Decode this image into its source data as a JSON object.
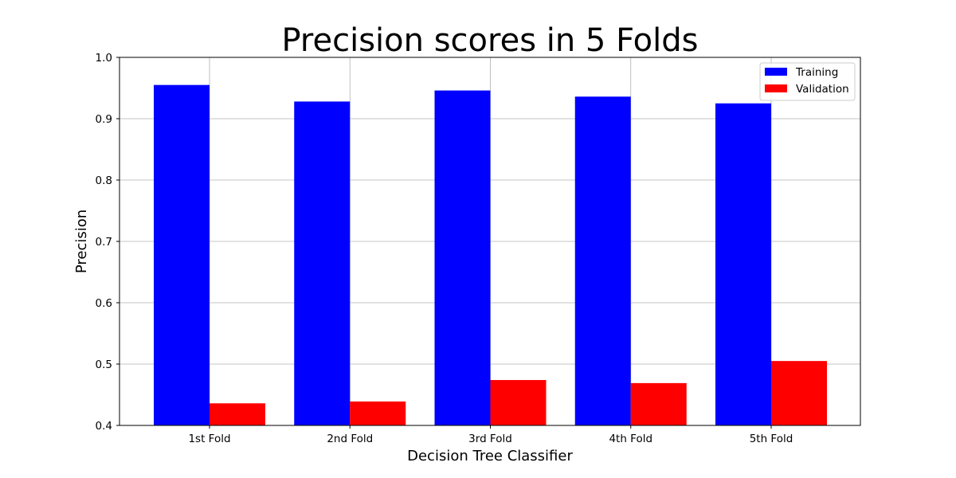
{
  "chart_data": {
    "type": "bar",
    "title": "Precision scores in 5 Folds",
    "xlabel": "Decision Tree Classifier",
    "ylabel": "Precision",
    "categories": [
      "1st Fold",
      "2nd Fold",
      "3rd Fold",
      "4th Fold",
      "5th Fold"
    ],
    "series": [
      {
        "name": "Training",
        "color": "#0000ff",
        "values": [
          0.955,
          0.928,
          0.946,
          0.936,
          0.925
        ]
      },
      {
        "name": "Validation",
        "color": "#ff0000",
        "values": [
          0.436,
          0.439,
          0.474,
          0.469,
          0.505
        ]
      }
    ],
    "ylim": [
      0.4,
      1.0
    ],
    "yticks": [
      "0.4",
      "0.5",
      "0.6",
      "0.7",
      "0.8",
      "0.9",
      "1.0"
    ],
    "grid": true,
    "legend": "top-right"
  }
}
